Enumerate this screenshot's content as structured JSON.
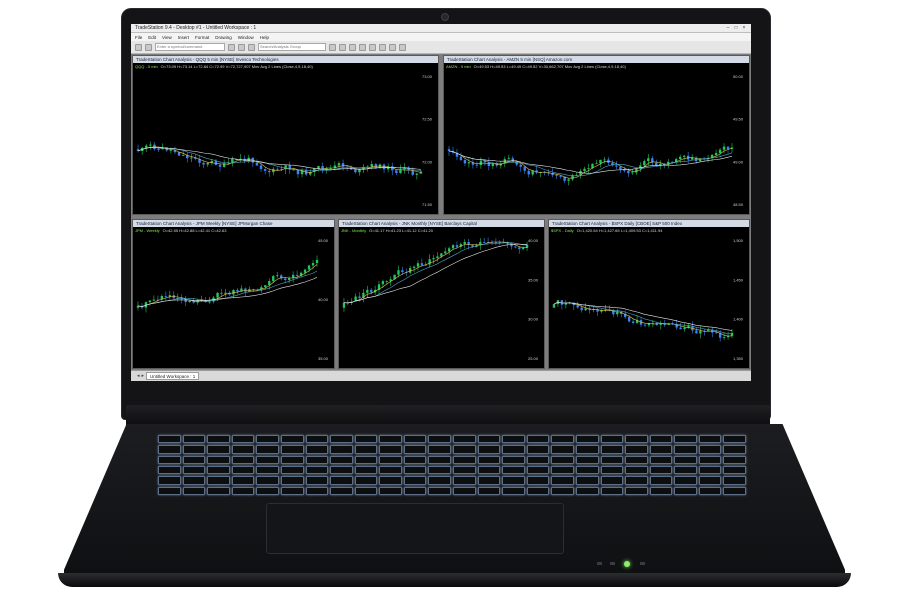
{
  "window": {
    "title": "TradeStation 9.4 - Desktop #1 - Untitled Workspace : 1",
    "menus": [
      "File",
      "Edit",
      "View",
      "Insert",
      "Format",
      "Drawing",
      "Window",
      "Help"
    ],
    "symbol_field": "Enter a symbol/command",
    "search_field": "Search/Analysis Group"
  },
  "tabs": {
    "workspace": "Untitled Workspace : 1"
  },
  "panels": [
    {
      "title": "TradeStation Chart Analysis - QQQ 5 min [NYSE] Invesco Technologies",
      "info": "O=73.09 H=73.14 L=72.84 C=72.99  V=72,727,907  Mov Avg 2 Lines (Close,4,9,18,40)",
      "symbol": "QQQ - 5 min",
      "scale": [
        "73.00",
        "72.50",
        "72.00",
        "71.50"
      ]
    },
    {
      "title": "TradeStation Chart Analysis - AMZN 5 min [NSQ] Amazon.com",
      "info": "O=49.53 H=49.53 L=49.49 C=49.52  V=30,662,707  Mov Avg 2 Lines (Close,4,9,18,40)",
      "symbol": "AMZN - 5 min",
      "scale": [
        "50.00",
        "49.50",
        "49.00",
        "48.50"
      ]
    },
    {
      "title": "TradeStation Chart Analysis - JPM Weekly [NYSE] JPMorgan Chase",
      "info": "O=42.55 H=42.88 L=42.41 C=42.63",
      "symbol": "JPM - Weekly",
      "scale": [
        "45.00",
        "40.00",
        "35.00"
      ]
    },
    {
      "title": "TradeStation Chart Analysis - JNK Monthly [NYSE] Barclays Capital",
      "info": "O=41.17 H=41.23 L=41.12 C=41.20",
      "symbol": "JNK - Monthly",
      "scale": [
        "40.00",
        "35.00",
        "30.00",
        "25.00"
      ]
    },
    {
      "title": "TradeStation Chart Analysis - $SPX Daily [CBOE] S&P 500 Index",
      "info": "O=1,420.54 H=1,427.65 L=1,409.53 C=1,411.94",
      "symbol": "$SPX - Daily",
      "scale": [
        "1,500",
        "1,450",
        "1,400",
        "1,350"
      ]
    }
  ],
  "colors": {
    "bull": "#22c55e",
    "bear": "#3b82f6",
    "ma_fast": "#e5c04a",
    "ma_slow": "#4aa8c9",
    "ma_mid": "#e8e8e8",
    "power_led": "#8df06d"
  },
  "icons": [
    "webcam-icon",
    "minimize-icon",
    "maximize-icon",
    "close-icon"
  ]
}
